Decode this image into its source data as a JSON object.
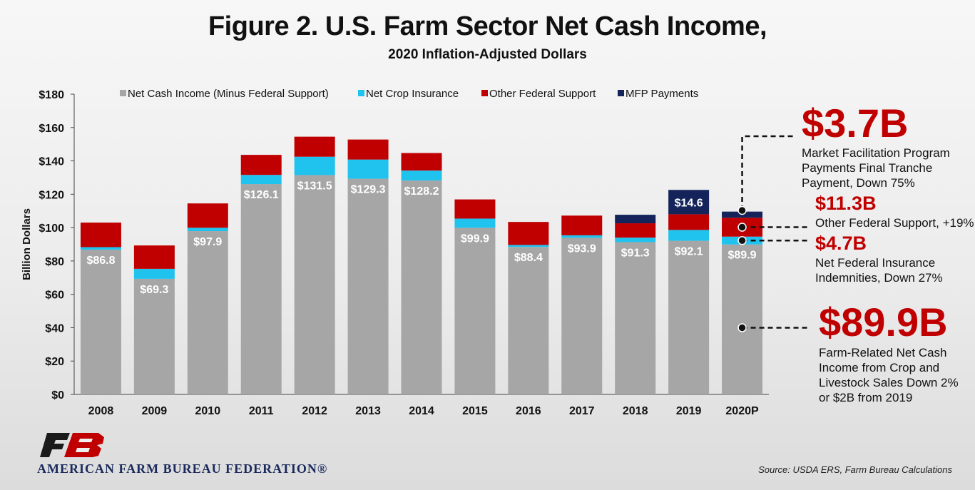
{
  "title": "Figure 2. U.S. Farm Sector Net Cash Income,",
  "subtitle": "2020 Inflation-Adjusted Dollars",
  "chart_data": {
    "type": "bar",
    "stacked": true,
    "categories": [
      "2008",
      "2009",
      "2010",
      "2011",
      "2012",
      "2013",
      "2014",
      "2015",
      "2016",
      "2017",
      "2018",
      "2019",
      "2020P"
    ],
    "ylabel": "Billion Dollars",
    "ylim": [
      0,
      180
    ],
    "yticks": [
      0,
      20,
      40,
      60,
      80,
      100,
      120,
      140,
      160,
      180
    ],
    "ytick_labels": [
      "$0",
      "$20",
      "$40",
      "$60",
      "$80",
      "$100",
      "$120",
      "$140",
      "$160",
      "$180"
    ],
    "legend_position": "top",
    "grid": false,
    "series": [
      {
        "name": "Net Cash Income (Minus Federal Support)",
        "color": "#a6a6a6",
        "values": [
          86.8,
          69.3,
          97.9,
          126.1,
          131.5,
          129.3,
          128.2,
          99.9,
          88.4,
          93.9,
          91.3,
          92.1,
          89.9
        ],
        "labels": [
          "$86.8",
          "$69.3",
          "$97.9",
          "$126.1",
          "$131.5",
          "$129.3",
          "$128.2",
          "$99.9",
          "$88.4",
          "$93.9",
          "$91.3",
          "$92.1",
          "$89.9"
        ]
      },
      {
        "name": "Net Crop Insurance",
        "color": "#1fc3ee",
        "values": [
          1.5,
          6.0,
          2.0,
          5.5,
          11.0,
          11.5,
          6.0,
          5.5,
          1.2,
          1.5,
          2.7,
          6.5,
          4.7
        ]
      },
      {
        "name": "Other Federal Support",
        "color": "#c00000",
        "values": [
          14.7,
          14.0,
          14.6,
          12.0,
          12.0,
          12.0,
          10.5,
          11.5,
          13.8,
          11.8,
          8.6,
          9.4,
          11.3
        ]
      },
      {
        "name": "MFP Payments",
        "color": "#14245a",
        "values": [
          0,
          0,
          0,
          0,
          0,
          0,
          0,
          0,
          0,
          0,
          5.1,
          14.6,
          3.7
        ],
        "labels": [
          "",
          "",
          "",
          "",
          "",
          "",
          "",
          "",
          "",
          "",
          "",
          "$14.6",
          ""
        ]
      }
    ]
  },
  "callouts": {
    "mfp": {
      "value": "$3.7B",
      "text": "Market Facilitation Program Payments Final Tranche Payment, Down 75%"
    },
    "other": {
      "value": "$11.3B",
      "text": "Other Federal Support, +19%"
    },
    "insurance": {
      "value": "$4.7B",
      "text": "Net Federal Insurance Indemnities, Down 27%"
    },
    "net": {
      "value": "$89.9B",
      "text": "Farm-Related Net Cash Income from Crop and Livestock Sales Down 2% or $2B from 2019"
    }
  },
  "org": "AMERICAN FARM BUREAU FEDERATION®",
  "source": "Source: USDA ERS, Farm Bureau Calculations",
  "colors": {
    "accent_red": "#c00000",
    "navy": "#14245a",
    "cyan": "#1fc3ee",
    "gray": "#a6a6a6"
  },
  "logo": {
    "text": "FB"
  }
}
